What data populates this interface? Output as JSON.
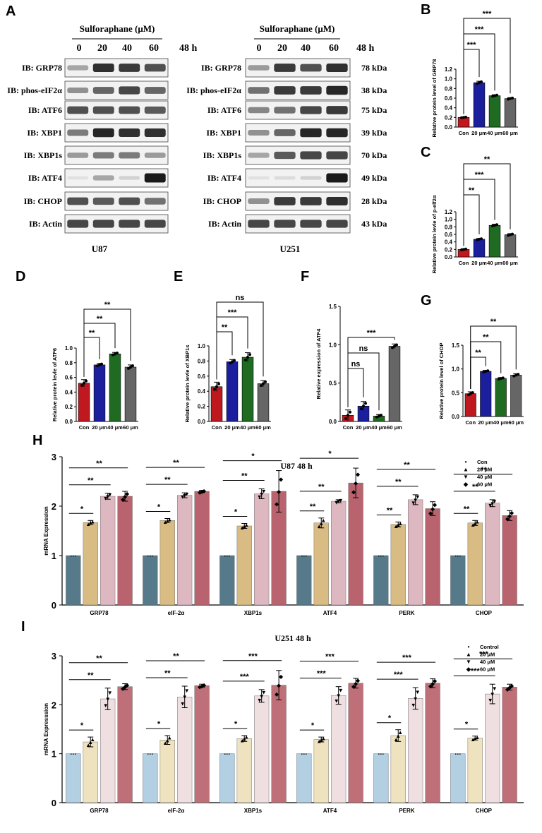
{
  "panels": {
    "A": "A",
    "B": "B",
    "C": "C",
    "D": "D",
    "E": "E",
    "F": "F",
    "G": "G",
    "H": "H",
    "I": "I"
  },
  "western_blot": {
    "treatment_title": "Sulforaphane (μM)",
    "doses": [
      "0",
      "20",
      "40",
      "60"
    ],
    "time": "48 h",
    "rows": [
      {
        "label": "IB: GRP78",
        "kda": "78 kDa"
      },
      {
        "label": "IB: phos-eIF2α",
        "kda": "38 kDa"
      },
      {
        "label": "IB: ATF6",
        "kda": "75 kDa"
      },
      {
        "label": "IB: XBP1",
        "kda": "39 kDa"
      },
      {
        "label": "IB: XBP1s",
        "kda": "70 kDa"
      },
      {
        "label": "IB: ATF4",
        "kda": "49 kDa"
      },
      {
        "label": "IB: CHOP",
        "kda": "28 kDa"
      },
      {
        "label": "IB: Actin",
        "kda": "43 kDa"
      }
    ],
    "cell_lines": [
      "U87",
      "U251"
    ],
    "colors": {
      "band": "#1a1a1a",
      "box": "#333333"
    }
  },
  "chart_data": [
    {
      "id": "B",
      "type": "bar",
      "ylabel": "Relative protein level of GRP78",
      "categories": [
        "Con",
        "20 μm",
        "40 μm",
        "60 μm"
      ],
      "values": [
        0.2,
        0.92,
        0.65,
        0.59
      ],
      "errors": [
        0.01,
        0.03,
        0.02,
        0.02
      ],
      "ylim": [
        0,
        1.2
      ],
      "yticks": [
        "0.0",
        "0.2",
        "0.4",
        "0.6",
        "0.8",
        "1.0",
        "1.2"
      ],
      "colors": [
        "#c0181f",
        "#1b1f9e",
        "#1f6b22",
        "#666666"
      ],
      "sig": [
        {
          "from": 0,
          "to": 1,
          "text": "***"
        },
        {
          "from": 0,
          "to": 2,
          "text": "***"
        },
        {
          "from": 0,
          "to": 3,
          "text": "***"
        }
      ]
    },
    {
      "id": "C",
      "type": "bar",
      "ylabel": "Relative protein levle of p-elf2α",
      "categories": [
        "Con",
        "20 μm",
        "40 μm",
        "60 μm"
      ],
      "values": [
        0.2,
        0.47,
        0.84,
        0.59
      ],
      "errors": [
        0.02,
        0.02,
        0.03,
        0.03
      ],
      "ylim": [
        0,
        1.2
      ],
      "yticks": [
        "0.0",
        "0.2",
        "0.4",
        "0.6",
        "0.8",
        "1.0",
        "1.2"
      ],
      "colors": [
        "#c0181f",
        "#1b1f9e",
        "#1f6b22",
        "#666666"
      ],
      "sig": [
        {
          "from": 0,
          "to": 1,
          "text": "**"
        },
        {
          "from": 0,
          "to": 2,
          "text": "***"
        },
        {
          "from": 0,
          "to": 3,
          "text": "**"
        }
      ]
    },
    {
      "id": "D",
      "type": "bar",
      "ylabel": "Relative protein levle of ATF6",
      "categories": [
        "Con",
        "20 μm",
        "40 μm",
        "60 μm"
      ],
      "values": [
        0.52,
        0.77,
        0.92,
        0.74
      ],
      "errors": [
        0.05,
        0.02,
        0.02,
        0.03
      ],
      "ylim": [
        0,
        1.0
      ],
      "yticks": [
        "0.0",
        "0.2",
        "0.4",
        "0.6",
        "0.8",
        "1.0"
      ],
      "colors": [
        "#c0181f",
        "#1b1f9e",
        "#1f6b22",
        "#666666"
      ],
      "sig": [
        {
          "from": 0,
          "to": 1,
          "text": "**"
        },
        {
          "from": 0,
          "to": 2,
          "text": "**"
        },
        {
          "from": 0,
          "to": 3,
          "text": "**"
        }
      ]
    },
    {
      "id": "E",
      "type": "bar",
      "ylabel": "Relative protein levle of XBP1s",
      "categories": [
        "Con",
        "20 μm",
        "40 μm",
        "60 μm"
      ],
      "values": [
        0.46,
        0.79,
        0.85,
        0.5
      ],
      "errors": [
        0.06,
        0.03,
        0.06,
        0.04
      ],
      "ylim": [
        0,
        1.0
      ],
      "yticks": [
        "0.0",
        "0.2",
        "0.4",
        "0.6",
        "0.8",
        "1.0"
      ],
      "colors": [
        "#c0181f",
        "#1b1f9e",
        "#1f6b22",
        "#666666"
      ],
      "sig": [
        {
          "from": 0,
          "to": 1,
          "text": "**"
        },
        {
          "from": 0,
          "to": 2,
          "text": "***"
        },
        {
          "from": 0,
          "to": 3,
          "text": "ns"
        }
      ]
    },
    {
      "id": "F",
      "type": "bar",
      "ylabel": "Relative expression of ATF4",
      "categories": [
        "Con",
        "20 μm",
        "40 μm",
        "60 μm"
      ],
      "values": [
        0.08,
        0.2,
        0.07,
        0.98
      ],
      "errors": [
        0.07,
        0.06,
        0.02,
        0.03
      ],
      "ylim": [
        0,
        1.5
      ],
      "yticks": [
        "0.0",
        "0.5",
        "1.0",
        "1.5"
      ],
      "colors": [
        "#c0181f",
        "#1b1f9e",
        "#1f6b22",
        "#666666"
      ],
      "sig": [
        {
          "from": 0,
          "to": 1,
          "text": "ns"
        },
        {
          "from": 0,
          "to": 2,
          "text": "ns"
        },
        {
          "from": 0,
          "to": 3,
          "text": "***"
        }
      ]
    },
    {
      "id": "G",
      "type": "bar",
      "ylabel": "Relative protein level of CHOP",
      "categories": [
        "Con",
        "20 μm",
        "40 μm",
        "60 μm"
      ],
      "values": [
        0.48,
        0.95,
        0.8,
        0.87
      ],
      "errors": [
        0.04,
        0.02,
        0.02,
        0.03
      ],
      "ylim": [
        0,
        1.5
      ],
      "yticks": [
        "0.0",
        "0.5",
        "1.0",
        "1.5"
      ],
      "colors": [
        "#c0181f",
        "#1b1f9e",
        "#1f6b22",
        "#666666"
      ],
      "sig": [
        {
          "from": 0,
          "to": 1,
          "text": "**"
        },
        {
          "from": 0,
          "to": 2,
          "text": "**"
        },
        {
          "from": 0,
          "to": 3,
          "text": "**"
        }
      ]
    },
    {
      "id": "H",
      "type": "bar",
      "title": "U87 48 h",
      "ylabel": "mRNA Expression",
      "categories": [
        "GRP78",
        "eIF-2α",
        "XBP1s",
        "ATF4",
        "PERK",
        "CHOP"
      ],
      "legend": [
        "Con",
        "20 μM",
        "40 μM",
        "60 μM"
      ],
      "legend_markers": [
        "•",
        "▲",
        "▼",
        "◆"
      ],
      "colors": [
        "#567a8a",
        "#d9bb84",
        "#deb8c1",
        "#b8636e"
      ],
      "ylim": [
        0,
        3
      ],
      "yticks": [
        "0",
        "1",
        "2",
        "3"
      ],
      "series": [
        {
          "name": "Con",
          "values": [
            1,
            1,
            1,
            1,
            1,
            1
          ],
          "errors": [
            0,
            0,
            0,
            0,
            0,
            0
          ]
        },
        {
          "name": "20 μM",
          "values": [
            1.67,
            1.71,
            1.6,
            1.66,
            1.63,
            1.66
          ],
          "errors": [
            0.04,
            0.04,
            0.05,
            0.1,
            0.05,
            0.05
          ]
        },
        {
          "name": "40 μM",
          "values": [
            2.2,
            2.22,
            2.25,
            2.1,
            2.13,
            2.06
          ],
          "errors": [
            0.06,
            0.05,
            0.1,
            0.03,
            0.1,
            0.07
          ]
        },
        {
          "name": "60 μM",
          "values": [
            2.2,
            2.3,
            2.3,
            2.47,
            1.95,
            1.81
          ],
          "errors": [
            0.1,
            0.02,
            0.42,
            0.3,
            0.14,
            0.1
          ]
        }
      ],
      "sig": [
        [
          "*",
          "**",
          "**"
        ],
        [
          "*",
          "**",
          "**"
        ],
        [
          "*",
          "**",
          "*"
        ],
        [
          "**",
          "**",
          "*"
        ],
        [
          "**",
          "**",
          "**"
        ],
        [
          "**",
          "**",
          "**"
        ]
      ]
    },
    {
      "id": "I",
      "type": "bar",
      "title": "U251 48 h",
      "ylabel": "mRNA Expresssion",
      "categories": [
        "GRP78",
        "eIF-2α",
        "XBP1s",
        "ATF4",
        "PERK",
        "CHOP"
      ],
      "legend": [
        "Control",
        "20 μM",
        "40 μM",
        "60 μM"
      ],
      "legend_markers": [
        "•",
        "▲",
        "▼",
        "◆"
      ],
      "colors": [
        "#b3cfe2",
        "#efe2bf",
        "#efdfe1",
        "#bf6f78"
      ],
      "ylim": [
        0,
        3
      ],
      "yticks": [
        "0",
        "1",
        "2",
        "3"
      ],
      "series": [
        {
          "name": "Control",
          "values": [
            1,
            1,
            1,
            1,
            1,
            1
          ],
          "errors": [
            0,
            0,
            0,
            0,
            0,
            0
          ]
        },
        {
          "name": "20 μM",
          "values": [
            1.24,
            1.28,
            1.31,
            1.29,
            1.37,
            1.32
          ],
          "errors": [
            0.1,
            0.09,
            0.06,
            0.05,
            0.12,
            0.04
          ]
        },
        {
          "name": "40 μM",
          "values": [
            2.12,
            2.16,
            2.18,
            2.19,
            2.13,
            2.22
          ],
          "errors": [
            0.22,
            0.22,
            0.13,
            0.18,
            0.22,
            0.2
          ]
        },
        {
          "name": "60 μM",
          "values": [
            2.37,
            2.39,
            2.4,
            2.44,
            2.44,
            2.36
          ],
          "errors": [
            0.06,
            0.03,
            0.3,
            0.1,
            0.09,
            0.06
          ]
        }
      ],
      "sig": [
        [
          "*",
          "**",
          "**"
        ],
        [
          "*",
          "**",
          "**"
        ],
        [
          "*",
          "***",
          "***"
        ],
        [
          "*",
          "***",
          "***"
        ],
        [
          "*",
          "***",
          "***"
        ],
        [
          "*",
          "***",
          "***"
        ]
      ]
    }
  ]
}
